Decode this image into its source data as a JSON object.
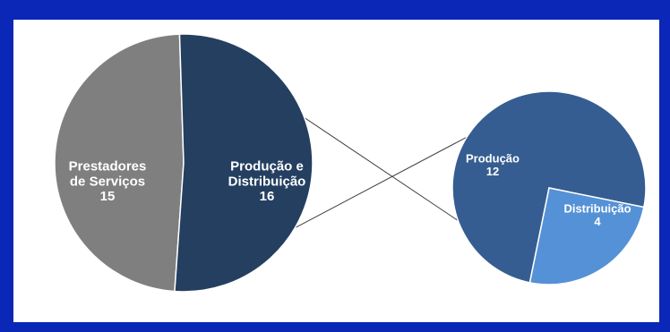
{
  "page": {
    "frame_color": "#0b27b8",
    "panel_color": "#ffffff"
  },
  "chart_data": {
    "type": "pie",
    "subtype": "pie-of-pie",
    "title": "",
    "main_pie": {
      "slices": [
        {
          "label_lines": [
            "Prestadores",
            "de Serviços"
          ],
          "value": 15,
          "color": "#7f7f7f"
        },
        {
          "label_lines": [
            "Produção e",
            "Distribuição"
          ],
          "value": 16,
          "color": "#243f60",
          "exploded_to_secondary": true
        }
      ]
    },
    "secondary_pie": {
      "slices": [
        {
          "label_lines": [
            "Produção"
          ],
          "value": 12,
          "color": "#355d91"
        },
        {
          "label_lines": [
            "Distribuição"
          ],
          "value": 4,
          "color": "#5591d6"
        }
      ]
    },
    "connector_color": "#404040"
  }
}
